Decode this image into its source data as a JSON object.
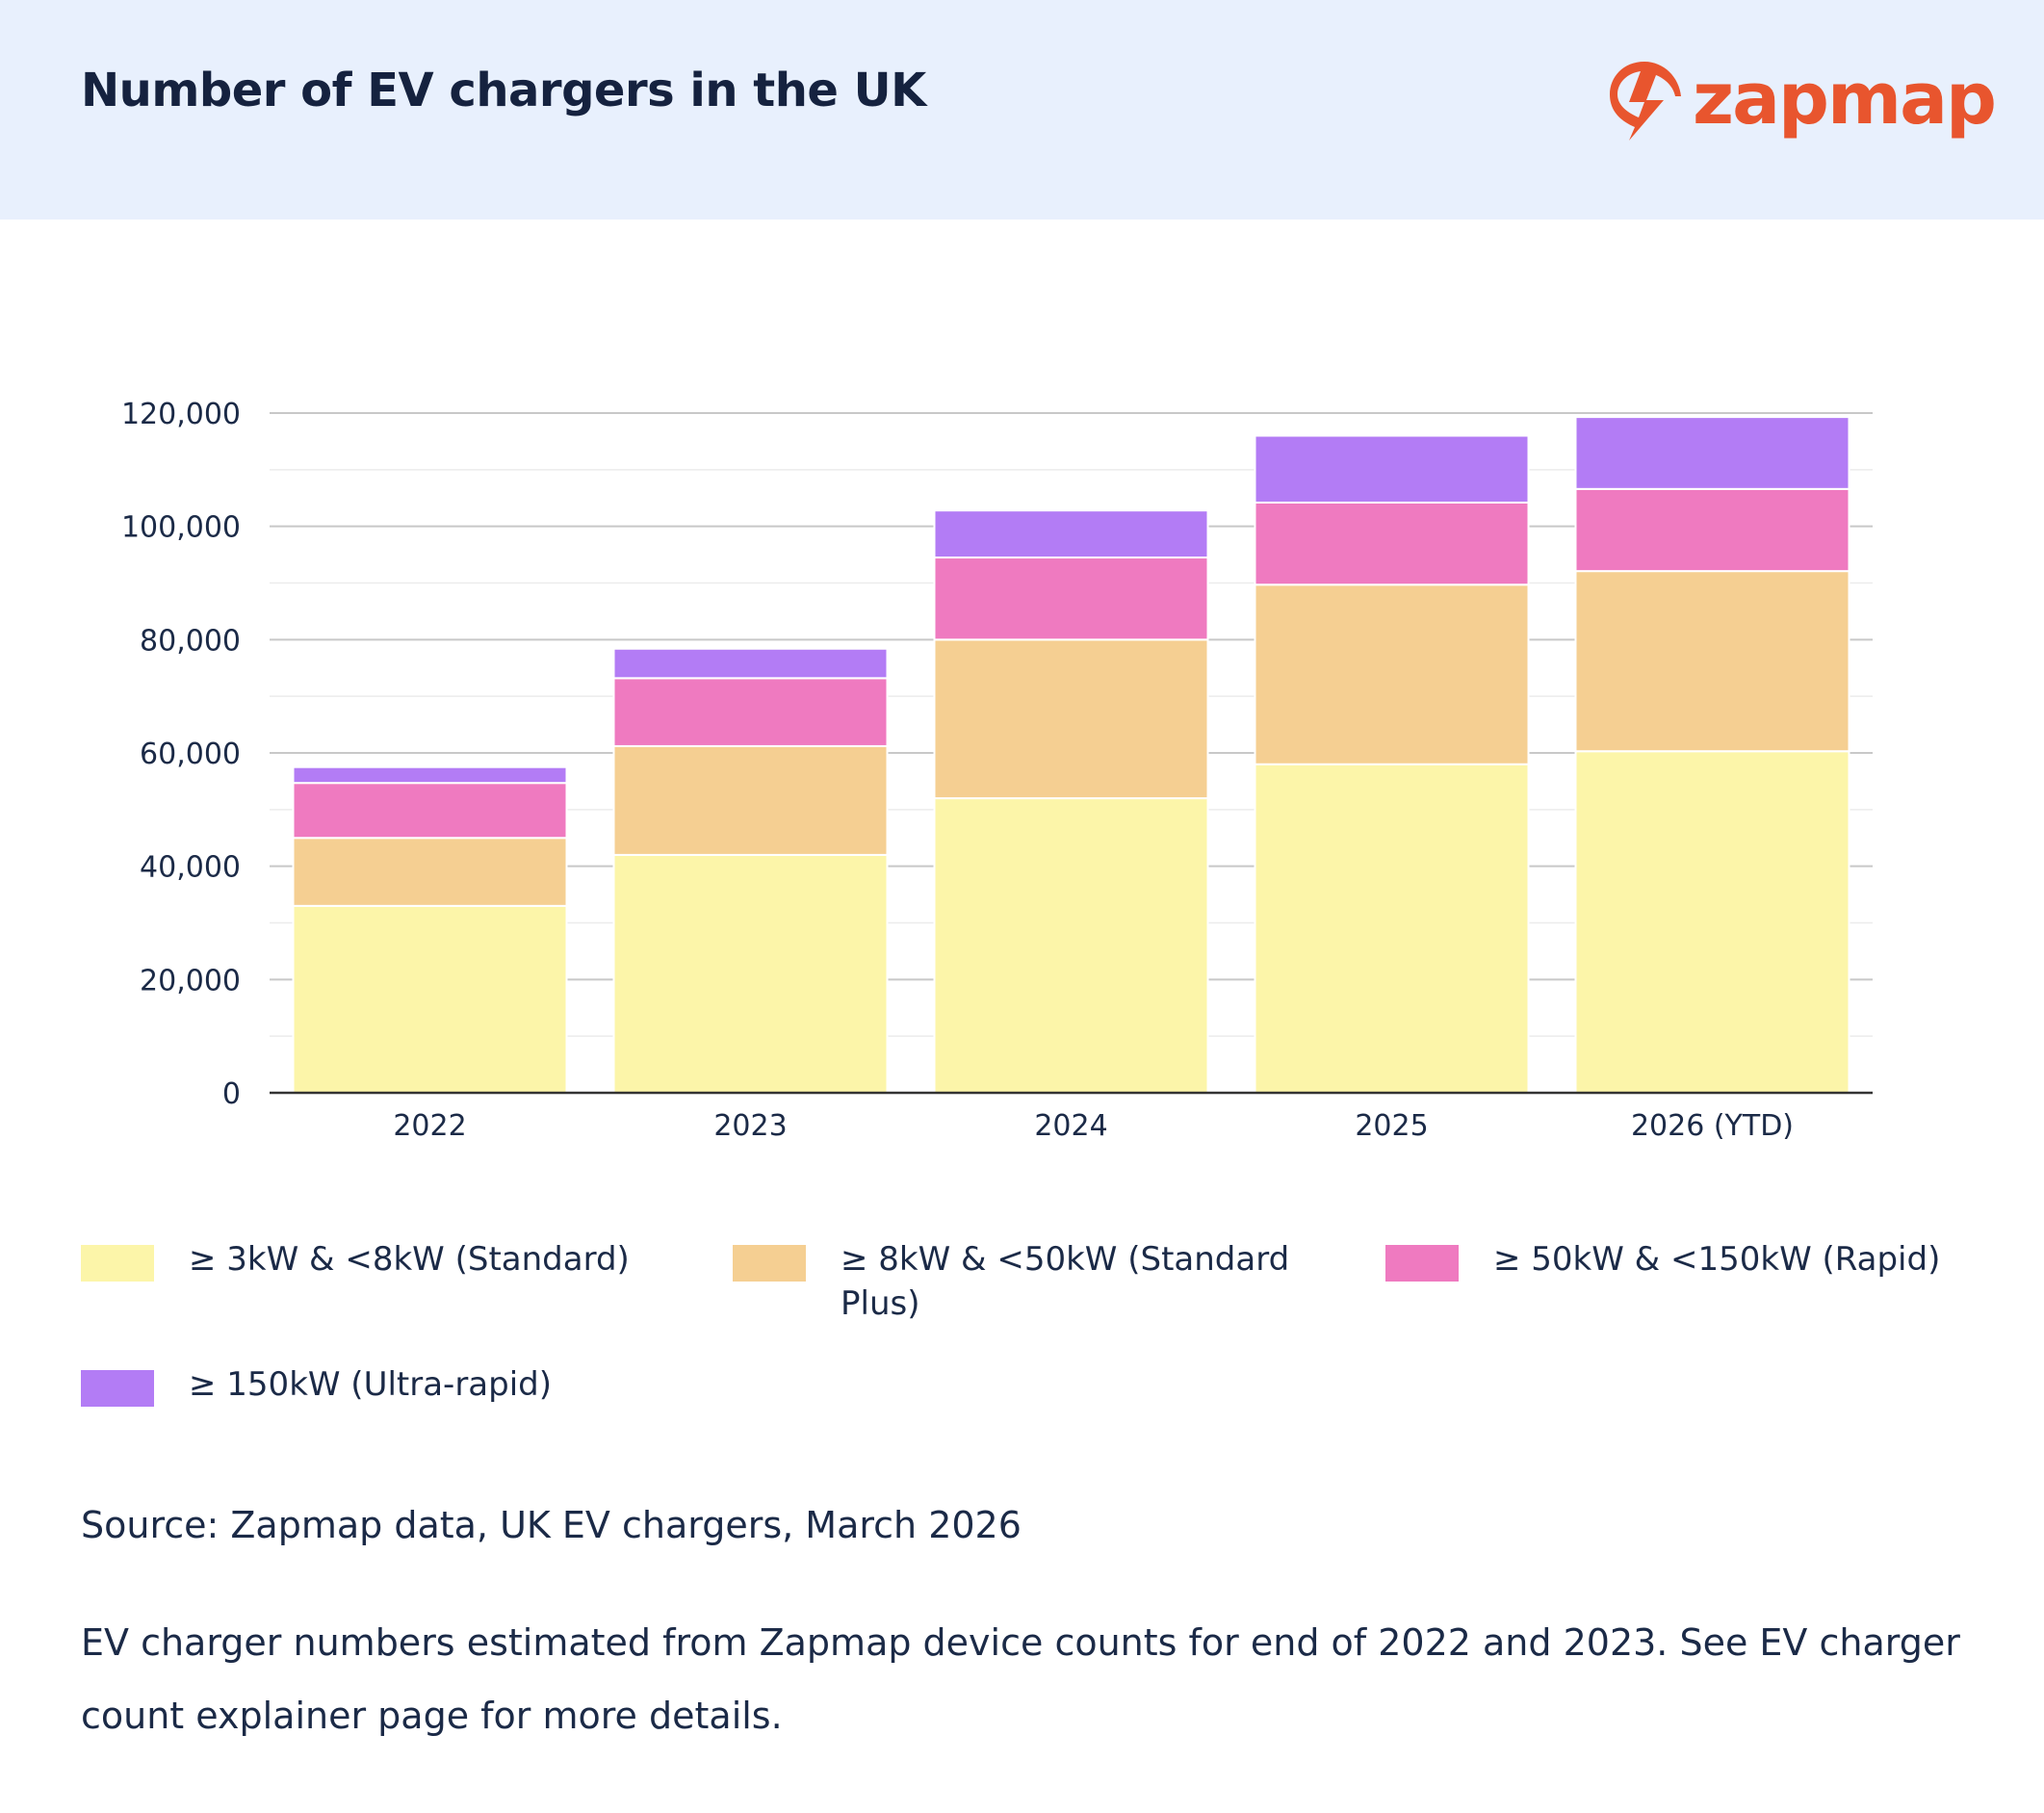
{
  "header": {
    "title": "Number of EV chargers in the UK",
    "logo_text": "zapmap"
  },
  "colors": {
    "header_bg": "#e8f0fd",
    "brand": "#e8552e",
    "standard": "#fcf5a9",
    "standard_plus": "#f5cf92",
    "rapid": "#ef7ac0",
    "ultra_rapid": "#b37cf5"
  },
  "chart_data": {
    "type": "bar",
    "stacked": true,
    "categories": [
      "2022",
      "2023",
      "2024",
      "2025",
      "2026 (YTD)"
    ],
    "series": [
      {
        "name": "≥ 3kW & <8kW (Standard)",
        "color": "#fcf5a9",
        "values": [
          33000,
          42000,
          52000,
          58000,
          60300
        ]
      },
      {
        "name": "≥ 8kW & <50kW (Standard Plus)",
        "color": "#f5cf92",
        "values": [
          12000,
          19200,
          28000,
          31700,
          31800
        ]
      },
      {
        "name": "≥ 50kW & <150kW (Rapid)",
        "color": "#ef7ac0",
        "values": [
          9700,
          12000,
          14500,
          14500,
          14500
        ]
      },
      {
        "name": "≥ 150kW (Ultra-rapid)",
        "color": "#b37cf5",
        "values": [
          2800,
          5200,
          8300,
          11800,
          12700
        ]
      }
    ],
    "ylim": [
      0,
      120000
    ],
    "yticks": [
      "0",
      "20,000",
      "40,000",
      "60,000",
      "80,000",
      "100,000",
      "120,000"
    ],
    "ytick_values": [
      0,
      20000,
      40000,
      60000,
      80000,
      100000,
      120000
    ],
    "grid": true,
    "legend_position": "bottom"
  },
  "legend": {
    "items": [
      {
        "label": "≥ 3kW & <8kW (Standard)",
        "color": "#fcf5a9"
      },
      {
        "label": "≥ 8kW & <50kW (Standard Plus)",
        "color": "#f5cf92"
      },
      {
        "label": "≥ 50kW & <150kW (Rapid)",
        "color": "#ef7ac0"
      },
      {
        "label": "≥ 150kW (Ultra-rapid)",
        "color": "#b37cf5"
      }
    ]
  },
  "footer": {
    "source": "Source: Zapmap data, UK EV chargers, March 2026",
    "note": "EV charger numbers estimated from Zapmap device counts for end of 2022 and 2023. See EV charger count explainer page for more details."
  }
}
